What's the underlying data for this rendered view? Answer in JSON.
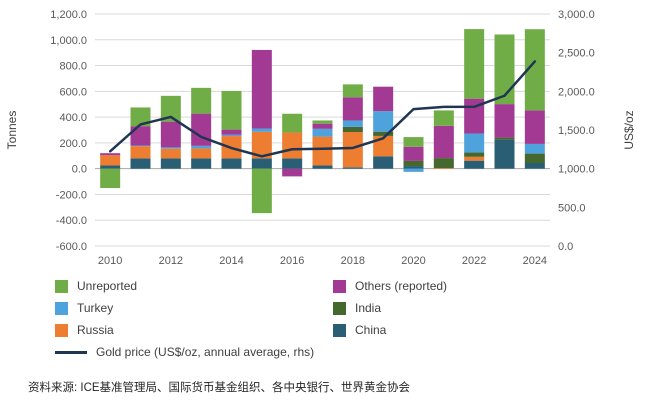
{
  "source": "资料来源: ICE基准管理局、国际货币基金组织、各中央银行、世界黄金协会",
  "legend": {
    "items": [
      {
        "label": "Unreported",
        "color": "#70AD47",
        "type": "box"
      },
      {
        "label": "Others (reported)",
        "color": "#A23A94",
        "type": "box"
      },
      {
        "label": "Turkey",
        "color": "#4FA3DC",
        "type": "box"
      },
      {
        "label": "India",
        "color": "#44682D",
        "type": "box"
      },
      {
        "label": "Russia",
        "color": "#ED7D31",
        "type": "box"
      },
      {
        "label": "China",
        "color": "#2A5E74",
        "type": "box"
      },
      {
        "label": "Gold price (US$/oz, annual average, rhs)",
        "color": "#1F3552",
        "type": "line",
        "full": true
      }
    ]
  },
  "chart_data": {
    "type": "bar",
    "subtype": "stacked-bar-with-line",
    "categories": [
      2010,
      2011,
      2012,
      2013,
      2014,
      2015,
      2016,
      2017,
      2018,
      2019,
      2020,
      2021,
      2022,
      2023,
      2024
    ],
    "x_tick_label_every": 2,
    "left_axis": {
      "label": "Tonnes",
      "min": -600,
      "max": 1200,
      "step": 200
    },
    "right_axis": {
      "label": "US$/oz",
      "min": 0,
      "max": 3000,
      "step": 500
    },
    "grid": true,
    "legend_position": "bottom",
    "series": [
      {
        "name": "China",
        "color": "#2A5E74",
        "values": [
          25,
          80,
          80,
          80,
          80,
          80,
          80,
          25,
          10,
          96,
          20,
          0,
          62,
          225,
          44
        ]
      },
      {
        "name": "Russia",
        "color": "#ED7D31",
        "values": [
          80,
          95,
          75,
          77,
          173,
          206,
          201,
          224,
          274,
          158,
          0,
          5,
          30,
          0,
          0
        ]
      },
      {
        "name": "India",
        "color": "#44682D",
        "values": [
          0,
          0,
          0,
          0,
          0,
          0,
          0,
          0,
          40,
          33,
          40,
          77,
          33,
          16,
          73
        ]
      },
      {
        "name": "Turkey",
        "color": "#4FA3DC",
        "values": [
          0,
          5,
          10,
          20,
          10,
          25,
          0,
          60,
          50,
          159,
          -25,
          0,
          148,
          0,
          75
        ]
      },
      {
        "name": "Others (reported)",
        "color": "#A23A94",
        "values": [
          15,
          150,
          200,
          250,
          40,
          610,
          -60,
          40,
          180,
          190,
          110,
          250,
          270,
          260,
          260
        ]
      },
      {
        "name": "Unreported",
        "color": "#70AD47",
        "values": [
          -150,
          145,
          200,
          200,
          300,
          -345,
          145,
          25,
          100,
          0,
          75,
          120,
          540,
          540,
          630
        ]
      }
    ],
    "line_series": {
      "name": "Gold price (US$/oz, annual average, rhs)",
      "color": "#1F3552",
      "axis": "right",
      "values": [
        1225,
        1572,
        1669,
        1411,
        1266,
        1160,
        1251,
        1257,
        1268,
        1393,
        1770,
        1799,
        1800,
        1943,
        2386
      ]
    }
  }
}
